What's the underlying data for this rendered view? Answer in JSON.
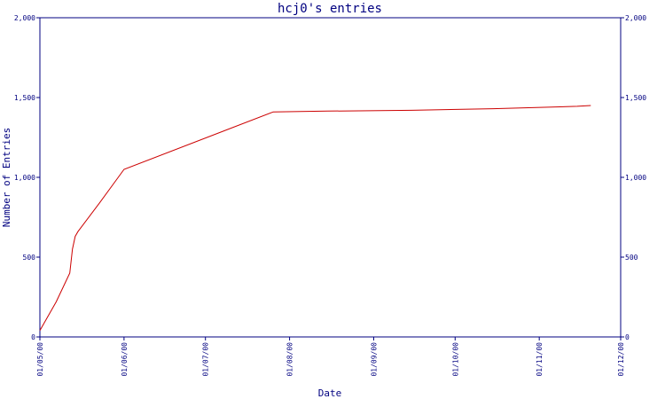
{
  "chart_data": {
    "type": "line",
    "title": "hcj0's entries",
    "xlabel": "Date",
    "ylabel": "Number of Entries",
    "ylim": [
      0,
      2000
    ],
    "yticks": [
      0,
      500,
      1000,
      1500,
      2000
    ],
    "ytick_labels": [
      "0",
      "500",
      "1,000",
      "1,500",
      "2,000"
    ],
    "xticks": [
      "2000-05-01",
      "2000-06-01",
      "2000-07-01",
      "2000-08-01",
      "2000-09-01",
      "2000-10-01",
      "2000-11-01",
      "2000-12-01"
    ],
    "xtick_labels": [
      "01/05/00",
      "01/06/00",
      "01/07/00",
      "01/08/00",
      "01/09/00",
      "01/10/00",
      "01/11/00",
      "01/12/00"
    ],
    "xlim": [
      "2000-05-01",
      "2000-12-01"
    ],
    "grid": false,
    "line_color": "#cc0000",
    "axis_color": "#000080",
    "series": [
      {
        "x": [
          "2000-05-01",
          "2000-05-07",
          "2000-05-12",
          "2000-05-13",
          "2000-05-14",
          "2000-05-15",
          "2000-05-23",
          "2000-06-01",
          "2000-07-26",
          "2000-08-15",
          "2000-09-15",
          "2000-10-15",
          "2000-11-15",
          "2000-11-20"
        ],
        "y": [
          40,
          220,
          400,
          550,
          630,
          660,
          840,
          1050,
          1410,
          1415,
          1420,
          1430,
          1445,
          1450
        ]
      }
    ]
  }
}
